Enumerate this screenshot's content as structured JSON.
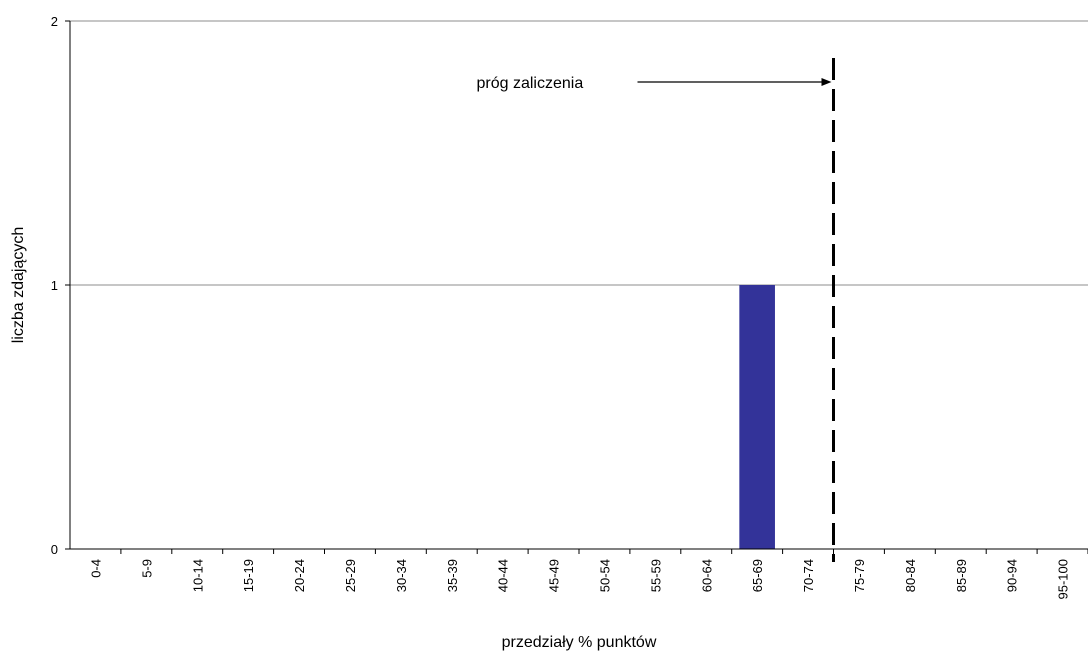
{
  "chart_data": {
    "type": "bar",
    "categories": [
      "0-4",
      "5-9",
      "10-14",
      "15-19",
      "20-24",
      "25-29",
      "30-34",
      "35-39",
      "40-44",
      "45-49",
      "50-54",
      "55-59",
      "60-64",
      "65-69",
      "70-74",
      "75-79",
      "80-84",
      "85-89",
      "90-94",
      "95-100"
    ],
    "values": [
      0,
      0,
      0,
      0,
      0,
      0,
      0,
      0,
      0,
      0,
      0,
      0,
      0,
      1,
      0,
      0,
      0,
      0,
      0,
      0
    ],
    "xlabel": "przedziały % punktów",
    "ylabel": "liczba zdających",
    "ylim": [
      0,
      2
    ],
    "yticks": [
      0,
      1,
      2
    ],
    "grid": true,
    "bar_color": "#333399",
    "threshold": {
      "label": "próg zaliczenia",
      "position_between": [
        "70-74",
        "75-79"
      ],
      "style": "dashed"
    }
  }
}
